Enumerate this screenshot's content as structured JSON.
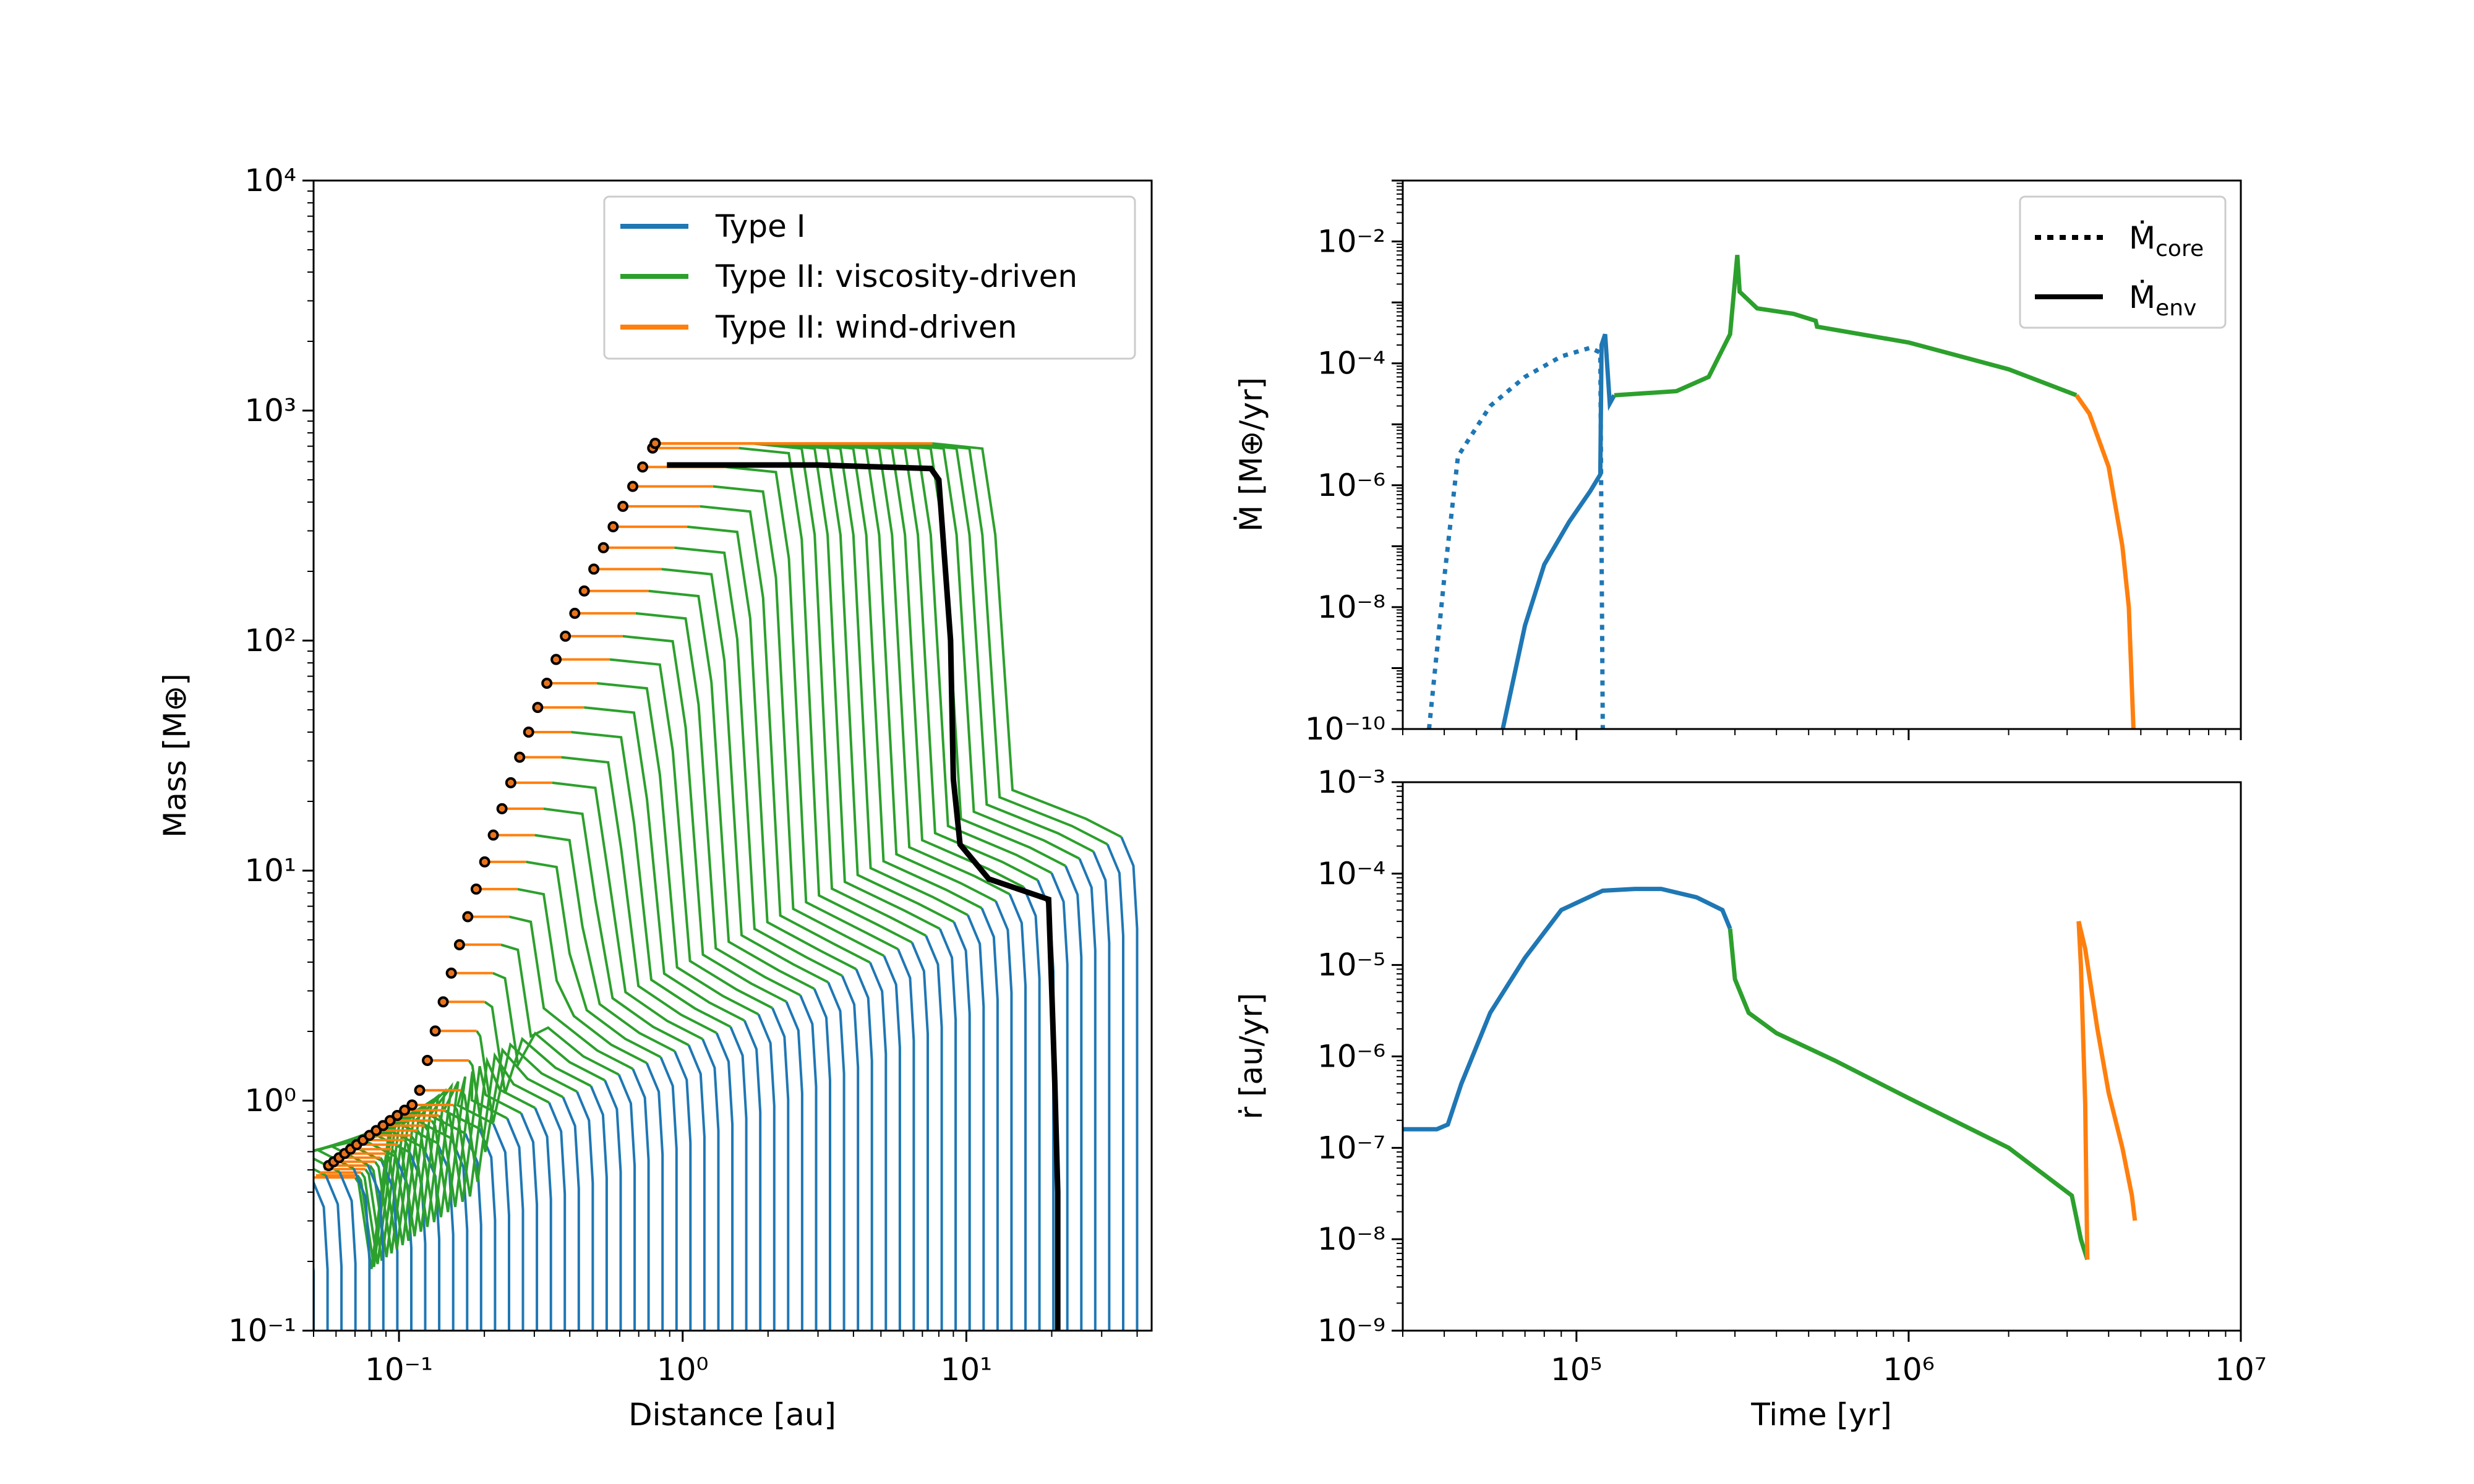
{
  "colors": {
    "type1": "#1f77b4",
    "type2_visc": "#2ca02c",
    "type2_wind": "#ff7f0e",
    "highlight": "#000000"
  },
  "chart_data": [
    {
      "type": "line",
      "panel": "left",
      "xlabel": "Distance [au]",
      "ylabel": "Mass [M⊕]",
      "xscale": "log",
      "yscale": "log",
      "xlim": [
        0.05,
        45
      ],
      "ylim": [
        0.1,
        10000
      ],
      "xticks": [
        {
          "label": "10⁻¹",
          "value": 0.1
        },
        {
          "label": "10⁰",
          "value": 1
        },
        {
          "label": "10¹",
          "value": 10
        }
      ],
      "yticks": [
        {
          "label": "10⁻¹",
          "value": 0.1
        },
        {
          "label": "10⁰",
          "value": 1
        },
        {
          "label": "10¹",
          "value": 10
        },
        {
          "label": "10²",
          "value": 100
        },
        {
          "label": "10³",
          "value": 1000
        },
        {
          "label": "10⁴",
          "value": 10000
        }
      ],
      "legend": {
        "placement": "top-right",
        "entries": [
          {
            "label": "Type I",
            "color": "#1f77b4"
          },
          {
            "label": "Type II: viscosity-driven",
            "color": "#2ca02c"
          },
          {
            "label": "Type II: wind-driven",
            "color": "#ff7f0e"
          }
        ]
      },
      "tracks": {
        "count": 60,
        "start_distance_range": [
          0.05,
          40
        ],
        "highlighted_track": {
          "start_distance": 21,
          "final_mass": 580,
          "final_distance": 0.88,
          "points": [
            [
              21,
              0.1
            ],
            [
              21,
              0.4
            ],
            [
              20.5,
              1.2
            ],
            [
              20,
              3
            ],
            [
              19.5,
              7.5
            ],
            [
              12,
              9.2
            ],
            [
              9.5,
              13
            ],
            [
              9,
              25
            ],
            [
              8.8,
              100
            ],
            [
              8,
              500
            ],
            [
              7.5,
              560
            ],
            [
              3,
              580
            ],
            [
              0.88,
              580
            ]
          ]
        }
      }
    },
    {
      "type": "line",
      "panel": "right-top",
      "ylabel": "Ṁ [M⊕/yr]",
      "xscale": "log",
      "yscale": "log",
      "xlim": [
        30000,
        10000000
      ],
      "ylim": [
        1e-10,
        0.1
      ],
      "yticks": [
        {
          "label": "10⁻¹⁰",
          "value": 1e-10
        },
        {
          "label": "10⁻⁸",
          "value": 1e-08
        },
        {
          "label": "10⁻⁶",
          "value": 1e-06
        },
        {
          "label": "10⁻⁴",
          "value": 0.0001
        },
        {
          "label": "10⁻²",
          "value": 0.01
        }
      ],
      "legend": {
        "placement": "top-right",
        "entries": [
          {
            "label": "Ṁ",
            "subscript": "core",
            "style": "dotted"
          },
          {
            "label": "Ṁ",
            "subscript": "env",
            "style": "solid"
          }
        ]
      },
      "series": [
        {
          "id": "mdot_core",
          "style": "dotted",
          "color": "#1f77b4",
          "points": [
            [
              36000,
              1e-10
            ],
            [
              40000,
              3e-08
            ],
            [
              44000,
              3e-06
            ],
            [
              55000,
              2e-05
            ],
            [
              70000,
              6e-05
            ],
            [
              90000,
              0.00013
            ],
            [
              110000,
              0.00018
            ],
            [
              118000,
              0.00015
            ],
            [
              119000,
              1e-07
            ],
            [
              120000,
              1e-10
            ]
          ]
        },
        {
          "id": "mdot_env_type1",
          "style": "solid",
          "color": "#1f77b4",
          "points": [
            [
              60000,
              1e-10
            ],
            [
              70000,
              5e-09
            ],
            [
              80000,
              5e-08
            ],
            [
              95000,
              2.5e-07
            ],
            [
              110000,
              8e-07
            ],
            [
              118000,
              1.5e-06
            ],
            [
              119000,
              0.0002
            ],
            [
              122000,
              0.0003
            ],
            [
              126000,
              2.2e-05
            ],
            [
              130000,
              3e-05
            ]
          ]
        },
        {
          "id": "mdot_env_visc",
          "style": "solid",
          "color": "#2ca02c",
          "points": [
            [
              130000,
              3e-05
            ],
            [
              200000,
              3.5e-05
            ],
            [
              250000,
              6e-05
            ],
            [
              290000,
              0.0003
            ],
            [
              305000,
              0.006
            ],
            [
              310000,
              0.0015
            ],
            [
              350000,
              0.0008
            ],
            [
              450000,
              0.00065
            ],
            [
              525000,
              0.0005
            ],
            [
              530000,
              0.0004
            ],
            [
              1000000,
              0.00022
            ],
            [
              2000000,
              8e-05
            ],
            [
              3200000,
              3e-05
            ]
          ]
        },
        {
          "id": "mdot_env_wind",
          "style": "solid",
          "color": "#ff7f0e",
          "points": [
            [
              3200000,
              3e-05
            ],
            [
              3500000,
              1.5e-05
            ],
            [
              4000000,
              2e-06
            ],
            [
              4400000,
              1e-07
            ],
            [
              4600000,
              1e-08
            ],
            [
              4750000,
              1e-10
            ]
          ]
        }
      ]
    },
    {
      "type": "line",
      "panel": "right-bottom",
      "xlabel": "Time [yr]",
      "ylabel": "ṙ [au/yr]",
      "xscale": "log",
      "yscale": "log",
      "xlim": [
        30000,
        10000000
      ],
      "ylim": [
        1e-09,
        0.001
      ],
      "xticks": [
        {
          "label": "10⁵",
          "value": 100000
        },
        {
          "label": "10⁶",
          "value": 1000000
        },
        {
          "label": "10⁷",
          "value": 10000000
        }
      ],
      "yticks": [
        {
          "label": "10⁻⁹",
          "value": 1e-09
        },
        {
          "label": "10⁻⁸",
          "value": 1e-08
        },
        {
          "label": "10⁻⁷",
          "value": 1e-07
        },
        {
          "label": "10⁻⁶",
          "value": 1e-06
        },
        {
          "label": "10⁻⁵",
          "value": 1e-05
        },
        {
          "label": "10⁻⁴",
          "value": 0.0001
        },
        {
          "label": "10⁻³",
          "value": 0.001
        }
      ],
      "series": [
        {
          "id": "rdot_type1",
          "color": "#1f77b4",
          "points": [
            [
              30000,
              1.6e-07
            ],
            [
              38000,
              1.6e-07
            ],
            [
              41000,
              1.8e-07
            ],
            [
              45000,
              5e-07
            ],
            [
              55000,
              3e-06
            ],
            [
              70000,
              1.2e-05
            ],
            [
              90000,
              4e-05
            ],
            [
              120000,
              6.5e-05
            ],
            [
              150000,
              6.8e-05
            ],
            [
              180000,
              6.8e-05
            ],
            [
              230000,
              5.5e-05
            ],
            [
              275000,
              4e-05
            ],
            [
              290000,
              2.5e-05
            ]
          ]
        },
        {
          "id": "rdot_visc",
          "color": "#2ca02c",
          "points": [
            [
              290000,
              2.5e-05
            ],
            [
              300000,
              7e-06
            ],
            [
              330000,
              3e-06
            ],
            [
              400000,
              1.8e-06
            ],
            [
              600000,
              9e-07
            ],
            [
              1000000,
              3.5e-07
            ],
            [
              2000000,
              1e-07
            ],
            [
              3100000,
              3e-08
            ],
            [
              3300000,
              1e-08
            ],
            [
              3450000,
              6e-09
            ]
          ]
        },
        {
          "id": "rdot_wind",
          "color": "#ff7f0e",
          "points": [
            [
              3450000,
              6e-09
            ],
            [
              3400000,
              3e-07
            ],
            [
              3300000,
              1e-05
            ],
            [
              3250000,
              3e-05
            ],
            [
              3400000,
              1.5e-05
            ],
            [
              3700000,
              2e-06
            ],
            [
              4000000,
              4e-07
            ],
            [
              4400000,
              1e-07
            ],
            [
              4700000,
              3e-08
            ],
            [
              4800000,
              1.6e-08
            ]
          ]
        }
      ]
    }
  ]
}
